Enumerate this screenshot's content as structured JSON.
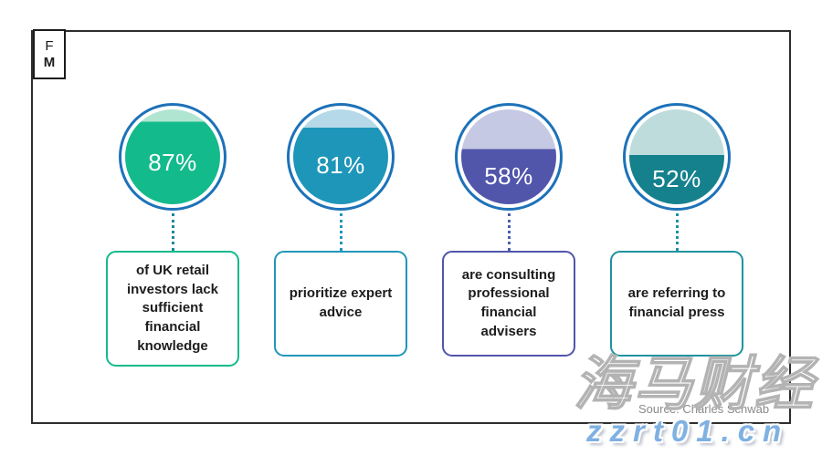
{
  "logo": {
    "line1": "F",
    "line2": "M"
  },
  "frame_color": "#2e2e2e",
  "ring_color": "#1d72b8",
  "stats": [
    {
      "pct": "87%",
      "value": 87,
      "label": "of UK retail investors lack sufficient financial knowledge",
      "color_main": "#13ba8c",
      "color_light": "#b0e5d1",
      "color_box": "#13ba8c",
      "color_dot": "#1d87a0"
    },
    {
      "pct": "81%",
      "value": 81,
      "label": "prioritize expert advice",
      "color_main": "#1e96ba",
      "color_light": "#b5d9e8",
      "color_box": "#2196ba",
      "color_dot": "#2196ba"
    },
    {
      "pct": "58%",
      "value": 58,
      "label": "are consulting professional financial advisers",
      "color_main": "#5156ab",
      "color_light": "#c6c9e3",
      "color_box": "#5156ab",
      "color_dot": "#4a5fb0"
    },
    {
      "pct": "52%",
      "value": 52,
      "label": "are referring to financial press",
      "color_main": "#15818d",
      "color_light": "#bfdcdd",
      "color_box": "#1f939e",
      "color_dot": "#1f939e"
    }
  ],
  "source": "Source: Charles Schwab",
  "watermark": {
    "cjk": "海马财经",
    "domain": "zzrt01.cn",
    "domain_color": "#7fb1e2"
  },
  "chart_data": {
    "type": "pie",
    "variant": "percentage-fill-circle-gauges",
    "categories": [
      "of UK retail investors lack sufficient financial knowledge",
      "prioritize expert advice",
      "are consulting professional financial advisers",
      "are referring to financial press"
    ],
    "values": [
      87,
      81,
      58,
      52
    ],
    "value_labels": [
      "87%",
      "81%",
      "58%",
      "52%"
    ],
    "title": "",
    "legend": "none",
    "source": "Source: Charles Schwab"
  }
}
